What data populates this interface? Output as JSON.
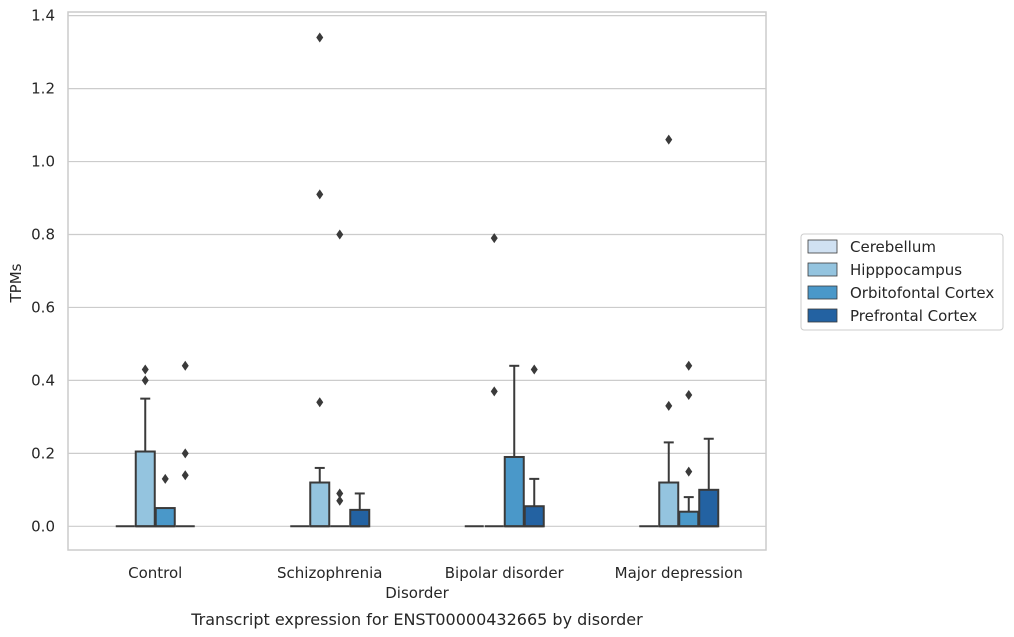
{
  "chart_data": {
    "type": "boxplot",
    "xlabel": "Disorder",
    "ylabel": "TPMs",
    "caption": "Transcript expression for ENST00000432665 by disorder",
    "ylim": [
      -0.065,
      1.41
    ],
    "yticks": [
      "0.0",
      "0.2",
      "0.4",
      "0.6",
      "0.8",
      "1.0",
      "1.2",
      "1.4"
    ],
    "ytick_values": [
      0,
      0.2,
      0.4,
      0.6,
      0.8,
      1.0,
      1.2,
      1.4
    ],
    "grid": true,
    "legend_position": "right",
    "categories": [
      "Control",
      "Schizophrenia",
      "Bipolar disorder",
      "Major depression"
    ],
    "series": [
      {
        "name": "Cerebellum",
        "color": "#d0e1f2",
        "boxes": [
          {
            "q1": 0,
            "median": 0,
            "q3": 0,
            "whisker_low": 0,
            "whisker_high": 0,
            "outliers": []
          },
          {
            "q1": 0,
            "median": 0,
            "q3": 0,
            "whisker_low": 0,
            "whisker_high": 0,
            "outliers": []
          },
          {
            "q1": 0,
            "median": 0,
            "q3": 0,
            "whisker_low": 0,
            "whisker_high": 0,
            "outliers": []
          },
          {
            "q1": 0,
            "median": 0,
            "q3": 0,
            "whisker_low": 0,
            "whisker_high": 0,
            "outliers": []
          }
        ]
      },
      {
        "name": "Hipppocampus",
        "color": "#94c4df",
        "boxes": [
          {
            "q1": 0,
            "median": 0,
            "q3": 0.205,
            "whisker_low": 0,
            "whisker_high": 0.35,
            "outliers": [
              0.43,
              0.4
            ]
          },
          {
            "q1": 0,
            "median": 0,
            "q3": 0.12,
            "whisker_low": 0,
            "whisker_high": 0.16,
            "outliers": [
              1.34,
              0.91,
              0.34
            ]
          },
          {
            "q1": 0,
            "median": 0,
            "q3": 0,
            "whisker_low": 0,
            "whisker_high": 0,
            "outliers": [
              0.79,
              0.37
            ]
          },
          {
            "q1": 0,
            "median": 0,
            "q3": 0.12,
            "whisker_low": 0,
            "whisker_high": 0.23,
            "outliers": [
              1.06,
              0.33
            ]
          }
        ]
      },
      {
        "name": "Orbitofontal Cortex",
        "color": "#4a98c9",
        "boxes": [
          {
            "q1": 0,
            "median": 0,
            "q3": 0.05,
            "whisker_low": 0,
            "whisker_high": 0.05,
            "outliers": [
              0.13
            ]
          },
          {
            "q1": 0,
            "median": 0,
            "q3": 0,
            "whisker_low": 0,
            "whisker_high": 0,
            "outliers": [
              0.8,
              0.09,
              0.07
            ]
          },
          {
            "q1": 0,
            "median": 0,
            "q3": 0.19,
            "whisker_low": 0,
            "whisker_high": 0.44,
            "outliers": []
          },
          {
            "q1": 0,
            "median": 0,
            "q3": 0.04,
            "whisker_low": 0,
            "whisker_high": 0.08,
            "outliers": [
              0.44,
              0.36,
              0.15
            ]
          }
        ]
      },
      {
        "name": "Prefrontal Cortex",
        "color": "#2362a2",
        "boxes": [
          {
            "q1": 0,
            "median": 0,
            "q3": 0,
            "whisker_low": 0,
            "whisker_high": 0,
            "outliers": [
              0.44,
              0.2,
              0.14
            ]
          },
          {
            "q1": 0,
            "median": 0,
            "q3": 0.045,
            "whisker_low": 0,
            "whisker_high": 0.09,
            "outliers": []
          },
          {
            "q1": 0,
            "median": 0,
            "q3": 0.055,
            "whisker_low": 0,
            "whisker_high": 0.13,
            "outliers": [
              0.43
            ]
          },
          {
            "q1": 0,
            "median": 0,
            "q3": 0.1,
            "whisker_low": 0,
            "whisker_high": 0.24,
            "outliers": []
          }
        ]
      }
    ]
  }
}
